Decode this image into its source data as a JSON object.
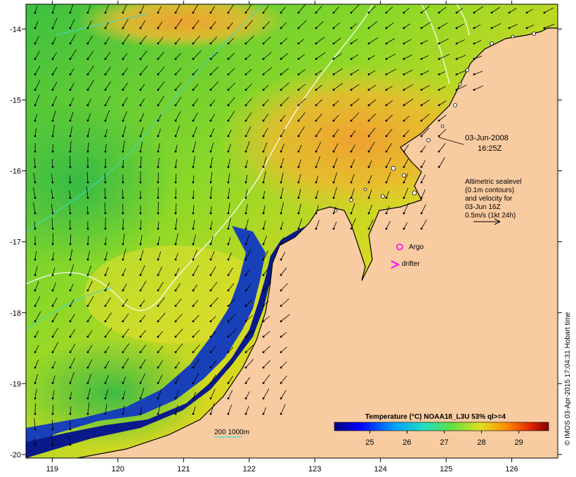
{
  "map": {
    "lon_ticks": [
      "119",
      "120",
      "121",
      "122",
      "123",
      "124",
      "125",
      "126"
    ],
    "lat_ticks": [
      "-14",
      "-15",
      "-16",
      "-17",
      "-18",
      "-19",
      "-20"
    ],
    "lon_range": [
      118.6,
      126.7
    ],
    "lat_range": [
      -20.05,
      -13.65
    ],
    "date_line1": "03-Jun-2008",
    "date_line2": "16:25Z",
    "info_lines": [
      "Altimetric sealevel",
      "(0.1m contours)",
      "and velocity for",
      "03-Jun 16Z",
      "0.5m/s (1kt 24h)"
    ],
    "argo_label": "Argo",
    "drifter_label": "drifter",
    "depth_label": "200  1000m",
    "colorbar_title": "Temperature (°C) NOAA18_L3U 53% ql>=4",
    "colorbar_ticks": [
      "25",
      "26",
      "27",
      "28",
      "29"
    ],
    "credit": "© IMOS 03-Apr-2015 17:04:31 Hobart time",
    "colors": {
      "land": "#f9cba0",
      "sst_cold": "#0a1a8a",
      "sst_mid": "#28c860",
      "sst_warm": "#f0a020",
      "marker": "#ff00ff"
    }
  }
}
